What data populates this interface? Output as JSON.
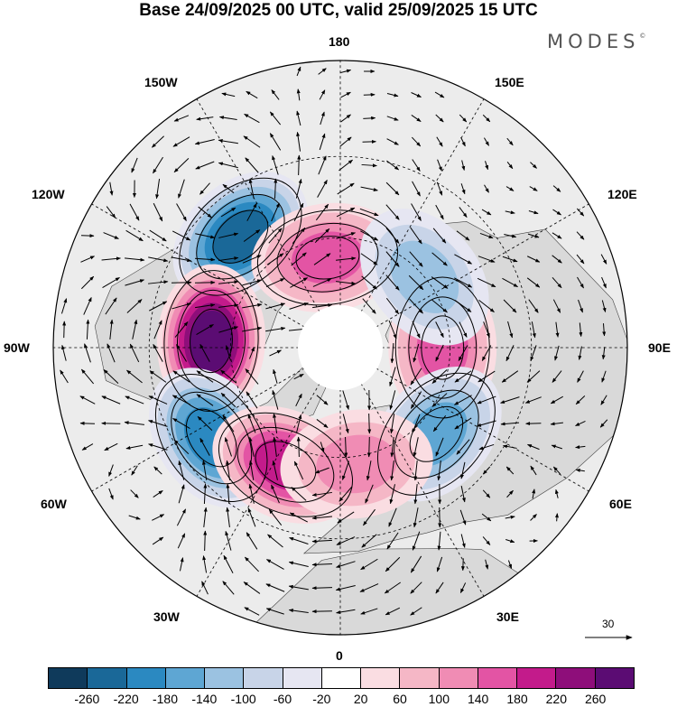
{
  "title": "Base 24/09/2025 00 UTC, valid 25/09/2025 15 UTC",
  "logo": {
    "text": "MODES",
    "mark": "©"
  },
  "longitude_labels": {
    "top": "180",
    "bottom": "0",
    "left": "90W",
    "right": "90E",
    "upper_left": "150W",
    "upper_right": "150E",
    "mid_upper_left": "120W",
    "mid_upper_right": "120E",
    "mid_lower_left": "60W",
    "mid_lower_right": "60E",
    "lower_left": "30W",
    "lower_right": "30E"
  },
  "reference_vector": {
    "label": "30"
  },
  "colorbar": {
    "colors": [
      "#0f3a5b",
      "#1a6898",
      "#2b89c1",
      "#5ea6d3",
      "#9bc2e1",
      "#c8d4e8",
      "#e6e6f2",
      "#ffffff",
      "#fadde2",
      "#f5b7c6",
      "#f08cb4",
      "#e354a4",
      "#c31b8b",
      "#8e0e7a",
      "#5b0c73"
    ],
    "ticks": [
      "-260",
      "-220",
      "-180",
      "-140",
      "-100",
      "-60",
      "-20",
      "20",
      "60",
      "100",
      "140",
      "180",
      "220",
      "260"
    ]
  },
  "anomaly_centers": [
    {
      "name": "low-north-pacific",
      "lon": -138,
      "lat": 50,
      "value": -250
    },
    {
      "name": "high-canada",
      "lon": -93,
      "lat": 55,
      "value": 260
    },
    {
      "name": "low-northwest-atlantic",
      "lon": -55,
      "lat": 48,
      "value": -200
    },
    {
      "name": "high-north-atlantic",
      "lon": -25,
      "lat": 55,
      "value": 200
    },
    {
      "name": "high-bering-strait",
      "lon": -172,
      "lat": 65,
      "value": 170
    },
    {
      "name": "high-siberia",
      "lon": 90,
      "lat": 62,
      "value": 160
    },
    {
      "name": "low-east-siberia",
      "lon": 130,
      "lat": 60,
      "value": -100
    },
    {
      "name": "low-ural",
      "lon": 48,
      "lat": 55,
      "value": -140
    },
    {
      "name": "high-scandinavia",
      "lon": 8,
      "lat": 58,
      "value": 120
    }
  ]
}
